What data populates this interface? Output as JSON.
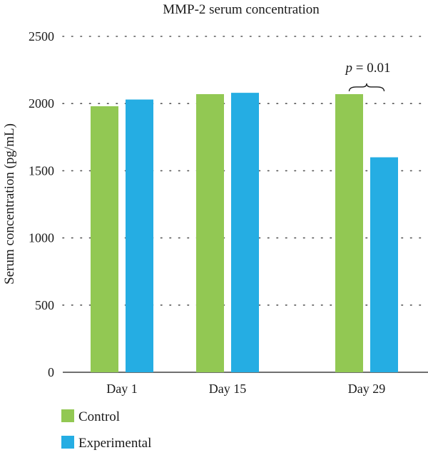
{
  "chart_data": {
    "type": "bar",
    "title": "MMP-2 serum concentration",
    "xlabel": "",
    "ylabel": "Serum concentration (pg/mL)",
    "categories": [
      "Day 1",
      "Day 15",
      "Day 29"
    ],
    "series": [
      {
        "name": "Control",
        "color": "#92c853",
        "values": [
          1980,
          2070,
          2070
        ]
      },
      {
        "name": "Experimental",
        "color": "#25ade3",
        "values": [
          2030,
          2080,
          1600
        ]
      }
    ],
    "ylim": [
      0,
      2500
    ],
    "yticks": [
      0,
      500,
      1000,
      1500,
      2000,
      2500
    ],
    "ytick_labels": [
      "0",
      "500",
      "1000",
      "1500",
      "2000",
      "2500"
    ],
    "grid": "horizontal dotted",
    "legend_position": "bottom-left",
    "annotations": [
      {
        "category": "Day 29",
        "p_symbol": "p",
        "text": " = 0.01",
        "y": 2150
      }
    ]
  }
}
